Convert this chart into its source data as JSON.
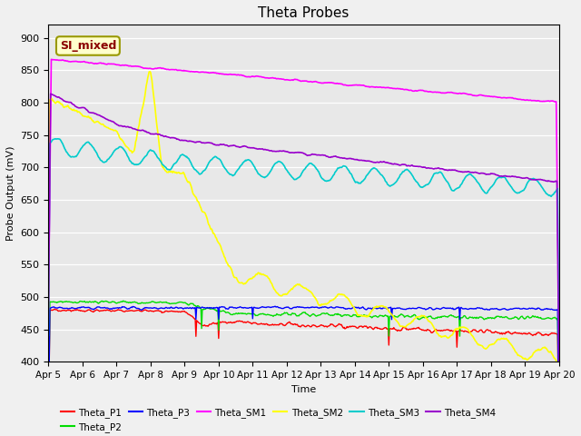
{
  "title": "Theta Probes",
  "xlabel": "Time",
  "ylabel": "Probe Output (mV)",
  "ylim": [
    400,
    920
  ],
  "yticks": [
    400,
    450,
    500,
    550,
    600,
    650,
    700,
    750,
    800,
    850,
    900
  ],
  "plot_bg": "#e8e8e8",
  "fig_bg": "#f0f0f0",
  "annotation_text": "SI_mixed",
  "annotation_bg": "#ffffcc",
  "annotation_border": "#999900",
  "series": {
    "Theta_P1": {
      "color": "#ff0000",
      "lw": 1.0
    },
    "Theta_P2": {
      "color": "#00dd00",
      "lw": 1.0
    },
    "Theta_P3": {
      "color": "#0000ff",
      "lw": 1.0
    },
    "Theta_SM1": {
      "color": "#ff00ff",
      "lw": 1.2
    },
    "Theta_SM2": {
      "color": "#ffff00",
      "lw": 1.2
    },
    "Theta_SM3": {
      "color": "#00cccc",
      "lw": 1.2
    },
    "Theta_SM4": {
      "color": "#9900cc",
      "lw": 1.2
    }
  },
  "xtick_labels": [
    "Apr 5",
    "Apr 6",
    "Apr 7",
    "Apr 8",
    "Apr 9",
    "Apr 10",
    "Apr 11",
    "Apr 12",
    "Apr 13",
    "Apr 14",
    "Apr 15",
    "Apr 16",
    "Apr 17",
    "Apr 18",
    "Apr 19",
    "Apr 20"
  ],
  "xtick_positions": [
    0,
    24,
    48,
    72,
    96,
    120,
    144,
    168,
    192,
    216,
    240,
    264,
    288,
    312,
    336,
    360
  ]
}
